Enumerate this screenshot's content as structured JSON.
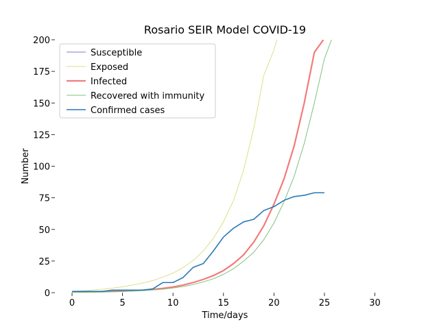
{
  "chart_data": {
    "type": "line",
    "title": "Rosario SEIR Model COVID-19",
    "xlabel": "Time/days",
    "ylabel": "Number",
    "xlim": [
      -1.7,
      32
    ],
    "ylim": [
      0,
      200
    ],
    "xticks": [
      0,
      5,
      10,
      15,
      20,
      25,
      30
    ],
    "yticks": [
      0,
      25,
      50,
      75,
      100,
      125,
      150,
      175,
      200
    ],
    "grid": false,
    "legend_position": "top-left",
    "series": [
      {
        "name": "Susceptible",
        "color": "#7b7bdb",
        "x": [],
        "y": []
      },
      {
        "name": "Exposed",
        "color": "#dede8a",
        "x": [
          0,
          1,
          2,
          3,
          4,
          5,
          6,
          7,
          8,
          9,
          10,
          11,
          12,
          13,
          14,
          15,
          16,
          17,
          18,
          19,
          20,
          20.3
        ],
        "y": [
          1,
          1.4,
          2,
          2.7,
          3.6,
          4.7,
          6,
          7.6,
          9.6,
          12.3,
          15.5,
          19.8,
          25.5,
          33,
          43,
          56,
          73,
          97,
          130,
          172,
          192,
          200
        ]
      },
      {
        "name": "Infected",
        "color": "#f47a7a",
        "x": [
          0,
          1,
          2,
          3,
          4,
          5,
          6,
          7,
          8,
          9,
          10,
          11,
          12,
          13,
          14,
          15,
          16,
          17,
          18,
          19,
          20,
          21,
          22,
          23,
          24,
          24.9
        ],
        "y": [
          0.5,
          0.6,
          0.7,
          0.8,
          1,
          1.2,
          1.6,
          2,
          2.6,
          3.4,
          4.5,
          6,
          8,
          10.5,
          13.5,
          17.5,
          23,
          30,
          40,
          53,
          70,
          90,
          116,
          150,
          190,
          200
        ]
      },
      {
        "name": "Recovered with immunity",
        "color": "#7fbf7f",
        "x": [
          0,
          1,
          2,
          3,
          4,
          5,
          6,
          7,
          8,
          9,
          10,
          11,
          12,
          13,
          14,
          15,
          16,
          17,
          18,
          19,
          20,
          21,
          22,
          23,
          24,
          25,
          25.7
        ],
        "y": [
          0.2,
          0.3,
          0.4,
          0.5,
          0.7,
          0.9,
          1.2,
          1.6,
          2.1,
          2.8,
          3.7,
          4.9,
          6.4,
          8.5,
          11,
          14.5,
          19,
          25,
          32,
          42,
          55,
          72,
          92,
          118,
          150,
          185,
          200
        ]
      },
      {
        "name": "Confirmed cases",
        "color": "#2878b5",
        "x": [
          0,
          1,
          2,
          3,
          4,
          5,
          6,
          7,
          8,
          9,
          10,
          11,
          12,
          13,
          14,
          15,
          16,
          17,
          18,
          19,
          20,
          21,
          22,
          23,
          24,
          25
        ],
        "y": [
          1,
          1,
          1,
          1,
          2,
          2,
          2,
          2,
          3,
          8,
          8,
          12,
          20,
          23,
          33,
          44,
          51,
          56,
          58,
          65,
          68,
          73,
          76,
          77,
          79,
          79
        ]
      }
    ]
  }
}
